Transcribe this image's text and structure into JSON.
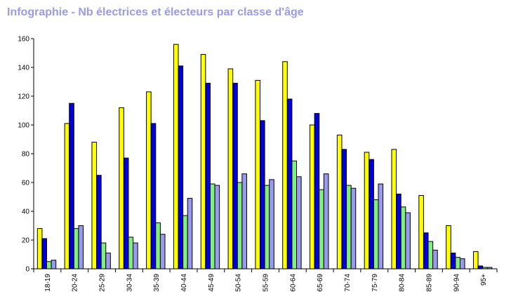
{
  "chart_data": {
    "type": "bar",
    "title": "Infographie - Nb électrices et électeurs par classe d'âge",
    "xlabel": "",
    "ylabel": "",
    "ylim": [
      0,
      160
    ],
    "yticks": [
      0,
      20,
      40,
      60,
      80,
      100,
      120,
      140,
      160
    ],
    "grid": false,
    "categories": [
      "18-19",
      "20-24",
      "25-29",
      "30-34",
      "35-39",
      "40-44",
      "45-49",
      "50-54",
      "55-59",
      "60-64",
      "65-69",
      "70-74",
      "75-79",
      "80-84",
      "85-89",
      "90-94",
      "95+"
    ],
    "series": [
      {
        "color": "#ffff00",
        "values": [
          28,
          101,
          88,
          112,
          123,
          156,
          149,
          139,
          131,
          144,
          100,
          93,
          81,
          83,
          51,
          30,
          12
        ]
      },
      {
        "color": "#0000dd",
        "values": [
          21,
          115,
          65,
          77,
          101,
          141,
          129,
          129,
          103,
          118,
          108,
          83,
          76,
          52,
          25,
          11,
          2
        ]
      },
      {
        "color": "#80ee80",
        "values": [
          5,
          28,
          18,
          22,
          32,
          37,
          59,
          60,
          58,
          75,
          55,
          58,
          48,
          43,
          19,
          8,
          1
        ]
      },
      {
        "color": "#9999ee",
        "values": [
          6,
          30,
          11,
          18,
          24,
          49,
          58,
          66,
          62,
          64,
          66,
          56,
          59,
          39,
          13,
          7,
          1
        ]
      }
    ]
  }
}
